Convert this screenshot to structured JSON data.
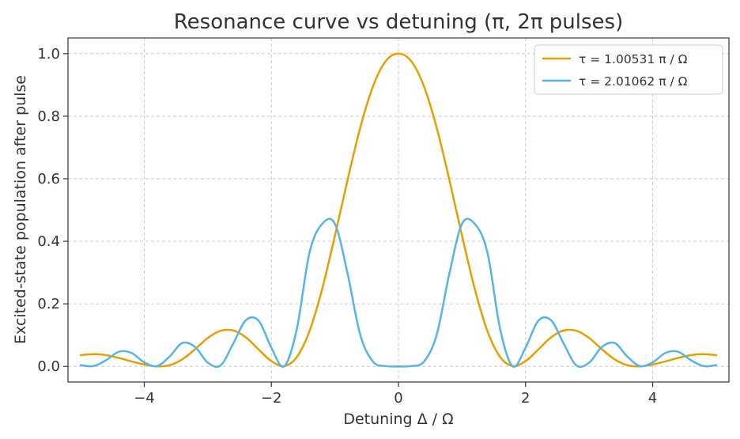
{
  "chart_data": {
    "type": "line",
    "title": "Resonance curve vs detuning (π, 2π pulses)",
    "xlabel": "Detuning Δ / Ω",
    "ylabel": "Excited-state population after pulse",
    "xlim": [
      -5.2,
      5.2
    ],
    "ylim": [
      -0.05,
      1.05
    ],
    "xticks": [
      -4,
      -2,
      0,
      2,
      4
    ],
    "xtick_labels": [
      "−4",
      "−2",
      "0",
      "2",
      "4"
    ],
    "yticks": [
      0.0,
      0.2,
      0.4,
      0.6,
      0.8,
      1.0
    ],
    "ytick_labels": [
      "0.0",
      "0.2",
      "0.4",
      "0.6",
      "0.8",
      "1.0"
    ],
    "grid": true,
    "legend_position": "top-right",
    "series": [
      {
        "name": "τ = 1.00531 π / Ω",
        "color": "#E69F00",
        "x": [
          -5.0,
          -4.8,
          -4.6,
          -4.4,
          -4.2,
          -4.0,
          -3.8,
          -3.6,
          -3.4,
          -3.2,
          -3.0,
          -2.8,
          -2.6,
          -2.4,
          -2.2,
          -2.0,
          -1.8,
          -1.6,
          -1.4,
          -1.2,
          -1.0,
          -0.8,
          -0.6,
          -0.4,
          -0.2,
          0.0,
          0.2,
          0.4,
          0.6,
          0.8,
          1.0,
          1.2,
          1.4,
          1.6,
          1.8,
          2.0,
          2.2,
          2.4,
          2.6,
          2.8,
          3.0,
          3.2,
          3.4,
          3.6,
          3.8,
          4.0,
          4.2,
          4.4,
          4.6,
          4.8,
          5.0
        ],
        "y": [
          0.036,
          0.039,
          0.036,
          0.027,
          0.016,
          0.006,
          0.0,
          0.004,
          0.023,
          0.055,
          0.091,
          0.114,
          0.115,
          0.093,
          0.054,
          0.017,
          0.001,
          0.03,
          0.113,
          0.248,
          0.418,
          0.597,
          0.764,
          0.896,
          0.976,
          1.0,
          0.976,
          0.896,
          0.764,
          0.597,
          0.418,
          0.248,
          0.113,
          0.03,
          0.001,
          0.017,
          0.054,
          0.093,
          0.115,
          0.114,
          0.091,
          0.055,
          0.023,
          0.004,
          0.0,
          0.006,
          0.016,
          0.027,
          0.036,
          0.039,
          0.036
        ]
      },
      {
        "name": "τ = 2.01062 π / Ω",
        "color": "#56B4E9",
        "x": [
          -5.0,
          -4.8,
          -4.6,
          -4.4,
          -4.2,
          -4.0,
          -3.8,
          -3.6,
          -3.4,
          -3.2,
          -3.0,
          -2.8,
          -2.6,
          -2.4,
          -2.2,
          -2.0,
          -1.8,
          -1.6,
          -1.4,
          -1.2,
          -1.0,
          -0.8,
          -0.6,
          -0.4,
          -0.2,
          0.0,
          0.2,
          0.4,
          0.6,
          0.8,
          1.0,
          1.2,
          1.4,
          1.6,
          1.8,
          2.0,
          2.2,
          2.4,
          2.6,
          2.8,
          3.0,
          3.2,
          3.4,
          3.6,
          3.8,
          4.0,
          4.2,
          4.4,
          4.6,
          4.8,
          5.0
        ],
        "y": [
          0.004,
          0.001,
          0.02,
          0.047,
          0.043,
          0.013,
          0.001,
          0.032,
          0.075,
          0.062,
          0.012,
          0.003,
          0.073,
          0.148,
          0.146,
          0.06,
          0.0,
          0.119,
          0.364,
          0.456,
          0.456,
          0.296,
          0.1,
          0.015,
          0.001,
          0.0,
          0.001,
          0.015,
          0.1,
          0.296,
          0.456,
          0.456,
          0.364,
          0.119,
          0.0,
          0.06,
          0.146,
          0.148,
          0.073,
          0.003,
          0.012,
          0.062,
          0.075,
          0.032,
          0.001,
          0.013,
          0.043,
          0.047,
          0.02,
          0.001,
          0.004
        ]
      }
    ]
  }
}
